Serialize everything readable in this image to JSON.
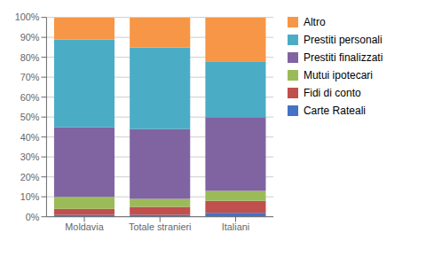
{
  "chart_data": {
    "type": "bar",
    "stacked": true,
    "categories": [
      "Moldavia",
      "Totale stranieri",
      "Italiani"
    ],
    "series": [
      {
        "name": "Carte Rateali",
        "color": "#4472C4",
        "values": [
          1.0,
          1.0,
          2.0
        ]
      },
      {
        "name": "Fidi di conto",
        "color": "#C0504D",
        "values": [
          3.0,
          4.0,
          6.0
        ]
      },
      {
        "name": "Mutui ipotecari",
        "color": "#9BBB59",
        "values": [
          6.0,
          4.0,
          5.0
        ]
      },
      {
        "name": "Prestiti finalizzati",
        "color": "#8064A2",
        "values": [
          35.0,
          35.0,
          37.0
        ]
      },
      {
        "name": "Prestiti personali",
        "color": "#4BACC6",
        "values": [
          44.0,
          41.0,
          28.0
        ]
      },
      {
        "name": "Altro",
        "color": "#F79646",
        "values": [
          11.0,
          15.0,
          22.0
        ]
      }
    ],
    "ylim": [
      0,
      100
    ],
    "yticks": [
      {
        "value": 0,
        "label": "0%"
      },
      {
        "value": 10,
        "label": "10%"
      },
      {
        "value": 20,
        "label": "20%"
      },
      {
        "value": 30,
        "label": "30%"
      },
      {
        "value": 40,
        "label": "40%"
      },
      {
        "value": 50,
        "label": "50%"
      },
      {
        "value": 60,
        "label": "60%"
      },
      {
        "value": 70,
        "label": "70%"
      },
      {
        "value": 80,
        "label": "80%"
      },
      {
        "value": 90,
        "label": "90%"
      },
      {
        "value": 100,
        "label": "100%"
      }
    ],
    "grid": true,
    "legend": "right"
  }
}
